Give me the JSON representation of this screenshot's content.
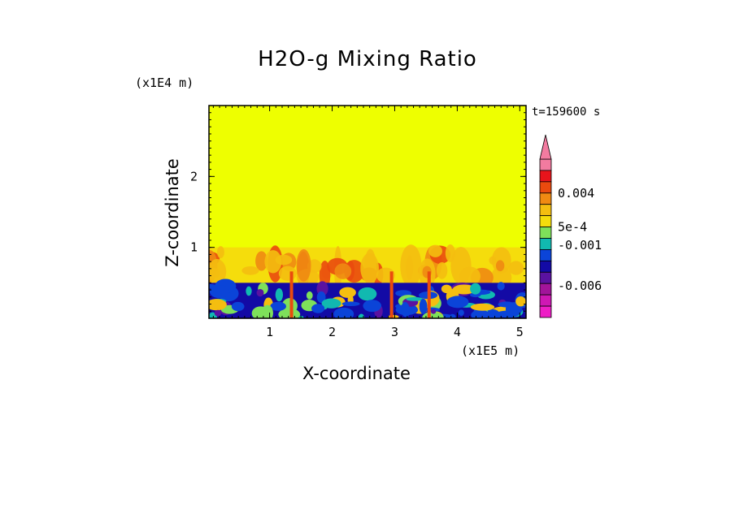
{
  "chart_data": {
    "type": "heatmap",
    "title": "H2O-g Mixing Ratio",
    "xlabel": "X-coordinate",
    "ylabel": "Z-coordinate",
    "x_unit": "(x1E5 m)",
    "y_unit": "(x1E4 m)",
    "time_label": "t=159600 s",
    "xlim": [
      0.03,
      5.1
    ],
    "ylim": [
      0,
      3
    ],
    "x_ticks": [
      "1",
      "2",
      "3",
      "4",
      "5"
    ],
    "y_ticks": [
      "1",
      "2"
    ],
    "colorbar": {
      "labels": [
        "0.004",
        "5e-4",
        "-0.001",
        "-0.006"
      ],
      "extend": "max",
      "colors": [
        "#f27ba0",
        "#e8141b",
        "#ea4a0e",
        "#f08a12",
        "#f4be10",
        "#f5dd0c",
        "#7ee05a",
        "#11b9b0",
        "#0b44d8",
        "#130aa5",
        "#5a12a0",
        "#a2149a",
        "#cf18b4",
        "#ee1ec6"
      ]
    },
    "fields": {
      "upper_uniform": "#eeff00",
      "layer_top_z": 1.0,
      "moist_layer_top_z": 0.5,
      "lower_dominant": "#130aa5"
    },
    "grid": false
  }
}
